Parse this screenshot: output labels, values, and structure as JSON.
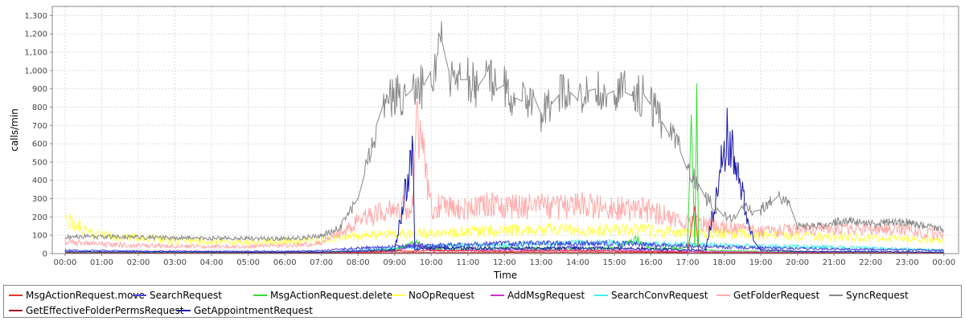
{
  "chart_data": {
    "type": "line",
    "title": "",
    "xlabel": "Time",
    "ylabel": "calls/min",
    "ylim": [
      0,
      1350
    ],
    "y_ticks": [
      0,
      100,
      200,
      300,
      400,
      500,
      600,
      700,
      800,
      900,
      1000,
      1100,
      1200,
      1300
    ],
    "y_tick_labels": [
      "0",
      "100",
      "200",
      "300",
      "400",
      "500",
      "600",
      "700",
      "800",
      "900",
      "1,000",
      "1,100",
      "1,200",
      "1,300"
    ],
    "x_range_hours": [
      -0.35,
      24.4
    ],
    "x_ticks": [
      0,
      1,
      2,
      3,
      4,
      5,
      6,
      7,
      8,
      9,
      10,
      11,
      12,
      13,
      14,
      15,
      16,
      17,
      18,
      19,
      20,
      21,
      22,
      23,
      24
    ],
    "x_tick_labels": [
      "00:00",
      "01:00",
      "02:00",
      "03:00",
      "04:00",
      "05:00",
      "06:00",
      "07:00",
      "08:00",
      "09:00",
      "10:00",
      "11:00",
      "12:00",
      "13:00",
      "14:00",
      "15:00",
      "16:00",
      "17:00",
      "18:00",
      "19:00",
      "20:00",
      "21:00",
      "22:00",
      "23:00",
      "00:00"
    ],
    "grid": true,
    "legend_position": "bottom",
    "series": [
      {
        "name": "MsgActionRequest.move",
        "color": "#e8342c",
        "x": [
          0,
          4,
          7,
          8,
          8.5,
          9,
          9.5,
          10,
          11,
          12,
          13,
          14,
          15,
          16,
          17,
          17.2,
          17.3,
          17.5,
          18,
          19,
          20,
          21,
          22,
          23,
          24
        ],
        "y": [
          3,
          2,
          3,
          5,
          10,
          15,
          12,
          18,
          15,
          12,
          14,
          15,
          12,
          10,
          8,
          260,
          10,
          6,
          5,
          4,
          3,
          3,
          3,
          2,
          2
        ]
      },
      {
        "name": "SearchRequest",
        "color": "#4444dd",
        "x": [
          0,
          2,
          4,
          6,
          7,
          8,
          9,
          10,
          11,
          12,
          13,
          14,
          15,
          16,
          17,
          18,
          19,
          20,
          21,
          22,
          23,
          24
        ],
        "y": [
          18,
          14,
          12,
          12,
          16,
          30,
          40,
          45,
          50,
          55,
          55,
          55,
          55,
          50,
          40,
          35,
          30,
          28,
          25,
          22,
          20,
          18
        ]
      },
      {
        "name": "MsgActionRequest.delete",
        "color": "#33dd33",
        "x": [
          0,
          4,
          7,
          8,
          9,
          9.6,
          10,
          11,
          12,
          13,
          14,
          15,
          15.6,
          16,
          17,
          17.1,
          17.2,
          17.25,
          17.3,
          17.5,
          18,
          19,
          20,
          21,
          22,
          23,
          24
        ],
        "y": [
          8,
          6,
          8,
          12,
          20,
          60,
          25,
          28,
          30,
          28,
          30,
          28,
          80,
          25,
          30,
          760,
          30,
          930,
          40,
          20,
          15,
          12,
          10,
          10,
          8,
          8,
          6
        ]
      },
      {
        "name": "NoOpRequest",
        "color": "#ffff55",
        "x": [
          0,
          0.3,
          0.6,
          1,
          2,
          3,
          4,
          5,
          6,
          7,
          8,
          9,
          10,
          11,
          12,
          13,
          14,
          15,
          16,
          17,
          18,
          19,
          20,
          21,
          22,
          23,
          24
        ],
        "y": [
          195,
          150,
          120,
          100,
          90,
          70,
          65,
          60,
          65,
          75,
          95,
          110,
          115,
          120,
          125,
          130,
          130,
          130,
          125,
          115,
          110,
          100,
          95,
          90,
          85,
          80,
          70
        ]
      },
      {
        "name": "AddMsgRequest",
        "color": "#cc33cc",
        "x": [
          0,
          4,
          7,
          8,
          9,
          9.6,
          10,
          11,
          12,
          13,
          14,
          15,
          16,
          17,
          18,
          19,
          20,
          21,
          22,
          23,
          24
        ],
        "y": [
          2,
          2,
          3,
          8,
          12,
          50,
          15,
          18,
          20,
          18,
          18,
          18,
          15,
          12,
          10,
          8,
          6,
          5,
          4,
          4,
          3
        ]
      },
      {
        "name": "SearchConvRequest",
        "color": "#44eeee",
        "x": [
          0,
          4,
          7,
          8,
          9,
          10,
          11,
          12,
          13,
          14,
          15,
          16,
          17,
          18,
          19,
          20,
          21,
          22,
          23,
          24
        ],
        "y": [
          5,
          4,
          6,
          15,
          30,
          40,
          45,
          50,
          55,
          60,
          60,
          55,
          50,
          45,
          40,
          38,
          35,
          30,
          25,
          18
        ]
      },
      {
        "name": "GetFolderRequest",
        "color": "#ffaaaa",
        "x": [
          0,
          1,
          2,
          3,
          4,
          5,
          6,
          7,
          7.5,
          8,
          8.5,
          9,
          9.5,
          9.6,
          10,
          10.5,
          11,
          11.5,
          12,
          12.5,
          13,
          13.5,
          14,
          14.5,
          15,
          15.5,
          16,
          16.5,
          17,
          17.5,
          18,
          19,
          20,
          21,
          22,
          23,
          24
        ],
        "y": [
          65,
          50,
          45,
          40,
          40,
          40,
          45,
          55,
          110,
          180,
          210,
          240,
          260,
          780,
          250,
          260,
          250,
          265,
          250,
          255,
          260,
          250,
          270,
          255,
          240,
          250,
          230,
          200,
          170,
          160,
          140,
          120,
          130,
          135,
          140,
          130,
          100
        ]
      },
      {
        "name": "SyncRequest",
        "color": "#888888",
        "x": [
          0,
          0.5,
          1,
          2,
          3,
          4,
          5,
          6,
          6.5,
          7,
          7.5,
          8,
          8.2,
          8.5,
          8.7,
          9,
          9.3,
          9.5,
          9.8,
          10,
          10.3,
          10.5,
          10.8,
          11,
          11.3,
          11.5,
          11.8,
          12,
          12.3,
          12.5,
          12.8,
          13,
          13.3,
          13.5,
          13.8,
          14,
          14.3,
          14.5,
          14.8,
          15,
          15.3,
          15.5,
          15.8,
          16,
          16.3,
          16.5,
          16.8,
          17,
          17.3,
          17.5,
          17.8,
          18,
          18.3,
          18.5,
          18.8,
          19,
          19.3,
          19.5,
          19.8,
          20,
          20.5,
          21,
          21.5,
          22,
          22.5,
          23,
          23.5,
          24
        ],
        "y": [
          90,
          95,
          92,
          90,
          85,
          85,
          82,
          82,
          85,
          100,
          140,
          300,
          450,
          700,
          820,
          880,
          860,
          900,
          920,
          1000,
          1150,
          980,
          950,
          950,
          920,
          980,
          900,
          920,
          850,
          830,
          860,
          760,
          820,
          870,
          880,
          840,
          890,
          900,
          870,
          890,
          880,
          860,
          870,
          810,
          720,
          650,
          560,
          450,
          380,
          300,
          250,
          200,
          190,
          270,
          230,
          240,
          280,
          320,
          260,
          150,
          150,
          170,
          180,
          160,
          170,
          175,
          150,
          130
        ]
      },
      {
        "name": "GetEffectiveFolderPermsRequest",
        "color": "#aa1111",
        "x": [
          0,
          4,
          8,
          9,
          10,
          11,
          12,
          13,
          14,
          15,
          16,
          17,
          18,
          20,
          22,
          24
        ],
        "y": [
          2,
          2,
          3,
          4,
          5,
          5,
          5,
          5,
          5,
          5,
          5,
          4,
          3,
          3,
          2,
          2
        ]
      },
      {
        "name": "GetAppointmentRequest",
        "color": "#1a1aaa",
        "x": [
          0,
          4,
          7,
          8,
          9,
          9.5,
          9.55,
          9.6,
          10,
          11,
          12,
          13,
          14,
          15,
          16,
          17,
          17.5,
          18.1,
          18.8,
          19,
          20,
          22,
          24
        ],
        "y": [
          10,
          8,
          8,
          15,
          20,
          580,
          20,
          25,
          30,
          30,
          30,
          30,
          30,
          30,
          25,
          20,
          20,
          655,
          70,
          20,
          12,
          10,
          8
        ]
      }
    ]
  }
}
